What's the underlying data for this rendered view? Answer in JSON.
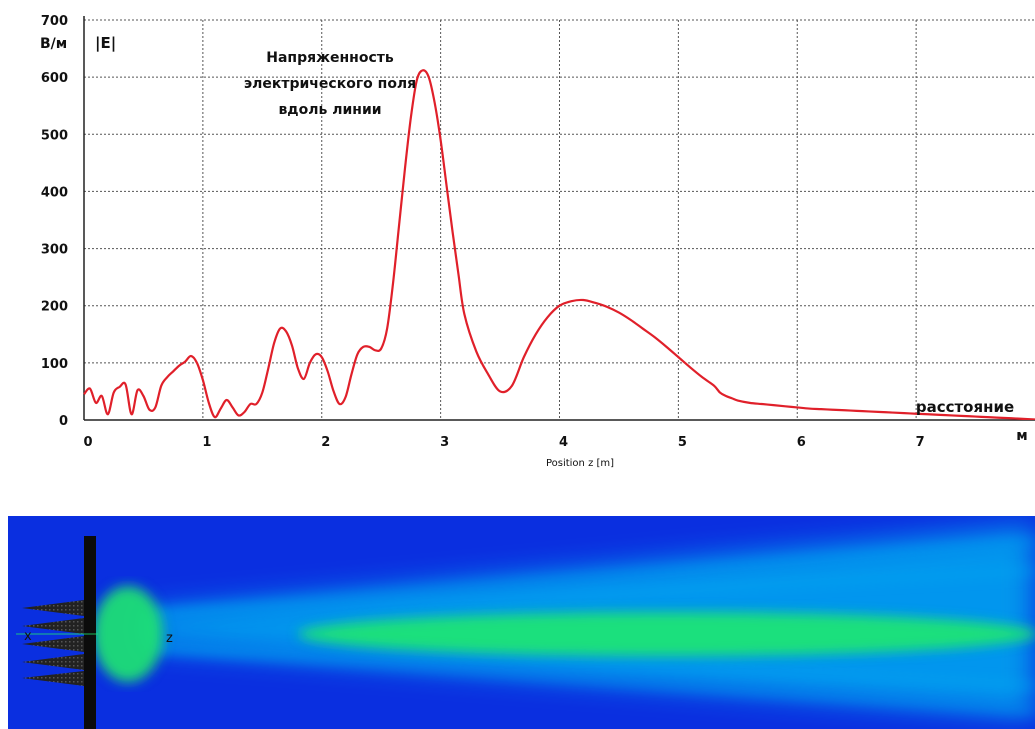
{
  "chart_data": {
    "type": "line",
    "title": "Напряженность электрического поля вдоль линии",
    "title_lines": [
      "Напряженность",
      "электрического поля",
      "вдоль линии"
    ],
    "series_label": "|E|",
    "ylabel": "В/м",
    "xlabel": "Position z [m]",
    "xlabel_right": "расстояние",
    "x_unit": "м",
    "xlim": [
      0,
      8.0
    ],
    "ylim": [
      0,
      700
    ],
    "x_ticks": [
      0,
      1,
      2,
      3,
      4,
      5,
      6,
      7
    ],
    "y_ticks": [
      0,
      100,
      200,
      300,
      400,
      500,
      600,
      700
    ],
    "grid": true,
    "line_color": "#e0202a",
    "series": [
      {
        "x": [
          0,
          0.05,
          0.1,
          0.15,
          0.2,
          0.25,
          0.3,
          0.35,
          0.4,
          0.45,
          0.5,
          0.55,
          0.6,
          0.65,
          0.7,
          0.75,
          0.8,
          0.85,
          0.9,
          0.95,
          1.0,
          1.05,
          1.1,
          1.15,
          1.2,
          1.25,
          1.3,
          1.35,
          1.4,
          1.45,
          1.5,
          1.55,
          1.6,
          1.65,
          1.7,
          1.75,
          1.8,
          1.85,
          1.9,
          1.95,
          2.0,
          2.05,
          2.1,
          2.15,
          2.2,
          2.25,
          2.3,
          2.35,
          2.4,
          2.45,
          2.5,
          2.55,
          2.6,
          2.65,
          2.7,
          2.75,
          2.8,
          2.85,
          2.9,
          2.95,
          3.0,
          3.05,
          3.1,
          3.15,
          3.2,
          3.3,
          3.4,
          3.5,
          3.6,
          3.7,
          3.8,
          3.9,
          4.0,
          4.1,
          4.2,
          4.3,
          4.4,
          4.5,
          4.6,
          4.7,
          4.8,
          4.9,
          5.0,
          5.1,
          5.2,
          5.3,
          5.35,
          5.4,
          5.45,
          5.5,
          5.6,
          5.7,
          5.8,
          5.9,
          6.0,
          6.1,
          6.2,
          6.3,
          6.4,
          6.5,
          6.6,
          6.7,
          6.8,
          6.9,
          7.0,
          7.1,
          7.2,
          7.3,
          7.4,
          7.5,
          7.6,
          7.7,
          7.8,
          7.9,
          8.0
        ],
        "y": [
          45,
          55,
          30,
          42,
          10,
          48,
          58,
          62,
          10,
          52,
          42,
          18,
          22,
          60,
          75,
          85,
          95,
          102,
          112,
          100,
          70,
          30,
          5,
          20,
          35,
          22,
          8,
          14,
          28,
          28,
          48,
          90,
          135,
          160,
          155,
          130,
          90,
          72,
          100,
          115,
          110,
          85,
          50,
          28,
          40,
          80,
          115,
          128,
          128,
          122,
          125,
          160,
          240,
          340,
          440,
          530,
          595,
          612,
          600,
          555,
          490,
          410,
          330,
          255,
          185,
          120,
          80,
          50,
          60,
          110,
          150,
          180,
          200,
          208,
          210,
          205,
          198,
          188,
          175,
          160,
          145,
          128,
          110,
          92,
          75,
          60,
          48,
          42,
          38,
          34,
          30,
          28,
          26,
          24,
          22,
          20,
          19,
          18,
          17,
          16,
          15,
          14,
          13,
          12,
          11,
          10,
          9,
          8,
          7,
          6,
          5,
          4,
          3,
          2,
          1
        ]
      }
    ]
  },
  "field_map": {
    "label_x": "x",
    "label_z": "z",
    "colors": {
      "background": "#0a2fe0",
      "mid": "#00a8f0",
      "high": "#1fe870",
      "antenna": "#111111"
    }
  }
}
